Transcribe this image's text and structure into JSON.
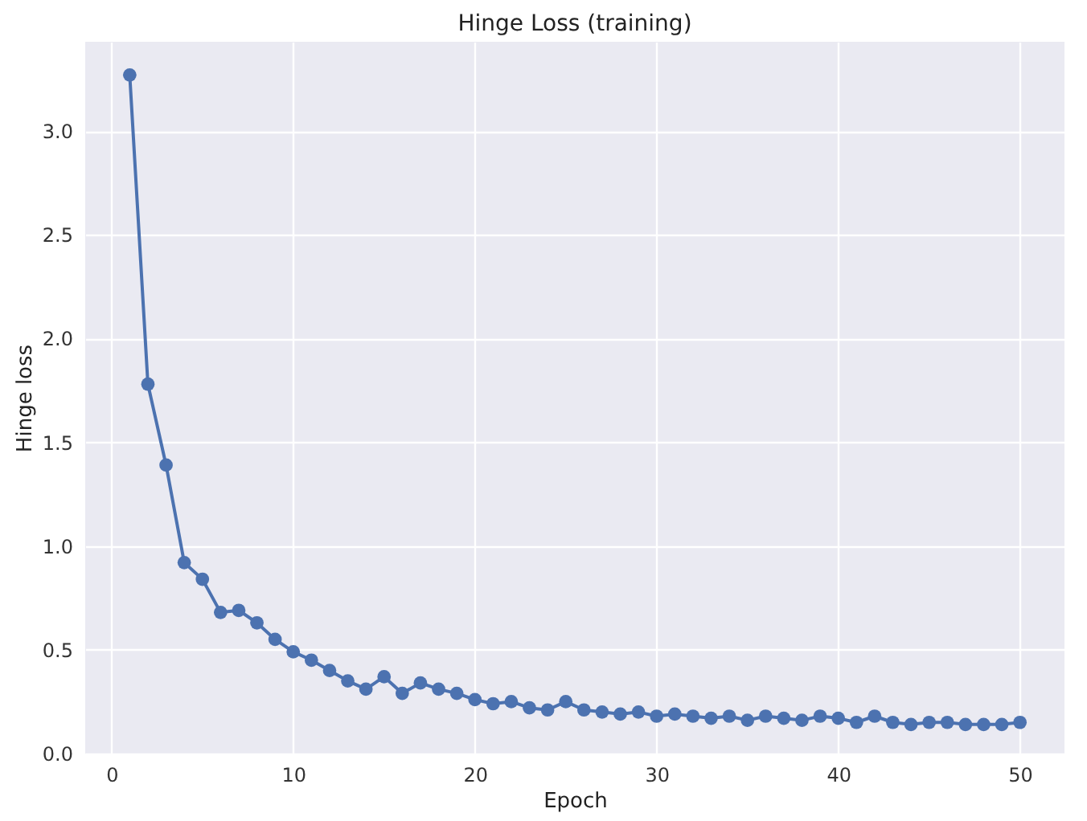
{
  "chart_data": {
    "type": "line",
    "title": "Hinge Loss (training)",
    "xlabel": "Epoch",
    "ylabel": "Hinge loss",
    "x": [
      1,
      2,
      3,
      4,
      5,
      6,
      7,
      8,
      9,
      10,
      11,
      12,
      13,
      14,
      15,
      16,
      17,
      18,
      19,
      20,
      21,
      22,
      23,
      24,
      25,
      26,
      27,
      28,
      29,
      30,
      31,
      32,
      33,
      34,
      35,
      36,
      37,
      38,
      39,
      40,
      41,
      42,
      43,
      44,
      45,
      46,
      47,
      48,
      49,
      50
    ],
    "series": [
      {
        "color": "#4c72b0",
        "values": [
          3.27,
          1.78,
          1.39,
          0.92,
          0.84,
          0.68,
          0.69,
          0.63,
          0.55,
          0.49,
          0.45,
          0.4,
          0.35,
          0.31,
          0.37,
          0.29,
          0.34,
          0.31,
          0.29,
          0.26,
          0.24,
          0.25,
          0.22,
          0.21,
          0.25,
          0.21,
          0.2,
          0.19,
          0.2,
          0.18,
          0.19,
          0.18,
          0.17,
          0.18,
          0.16,
          0.18,
          0.17,
          0.16,
          0.18,
          0.17,
          0.15,
          0.18,
          0.15,
          0.14,
          0.15,
          0.15,
          0.14,
          0.14,
          0.14,
          0.15
        ]
      }
    ],
    "xlim": [
      -1.45,
      52.45
    ],
    "ylim": [
      0,
      3.43
    ],
    "xticks": [
      0,
      10,
      20,
      30,
      40,
      50
    ],
    "yticks": [
      {
        "value": 0,
        "label": "0.0"
      },
      0.5,
      {
        "value": 1,
        "label": "1.0"
      },
      1.5,
      {
        "value": 2,
        "label": "2.0"
      },
      2.5,
      {
        "value": 3,
        "label": "3.0"
      }
    ],
    "grid": true,
    "marker": "circle",
    "line_style": "solid"
  }
}
